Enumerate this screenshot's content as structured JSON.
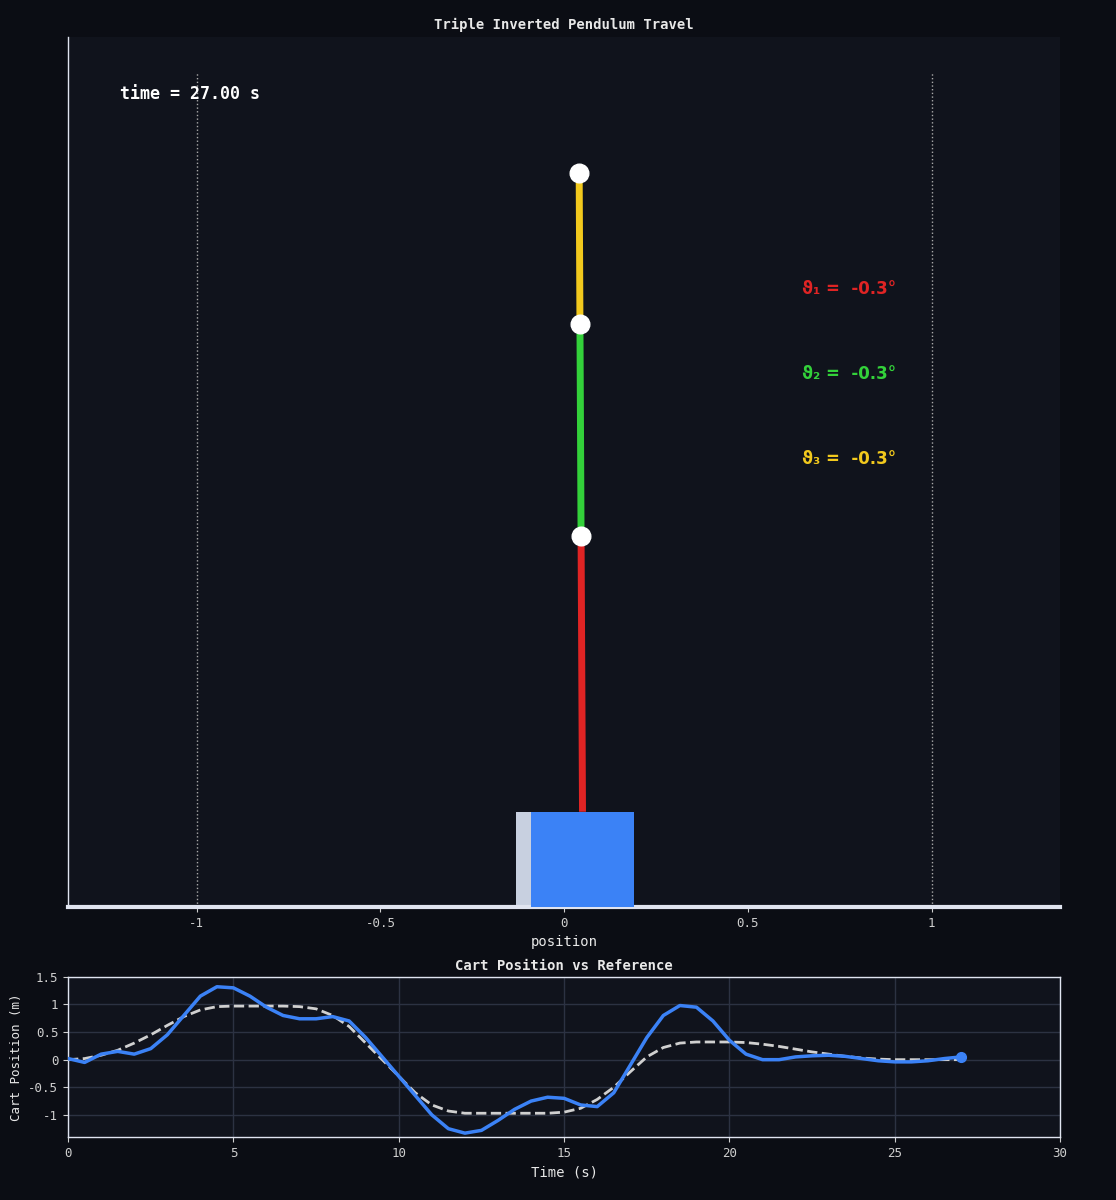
{
  "chart_data": [
    {
      "type": "pendulum",
      "title": "Triple Inverted Pendulum Travel",
      "x_label": "position",
      "xlim": [
        -1.35,
        1.35
      ],
      "xticks": [
        -1,
        -0.5,
        0,
        0.5,
        1
      ],
      "ylim": [
        0,
        2.37
      ],
      "tick_labels": "x",
      "annotations": [
        "time = 27.00 s"
      ],
      "track_limits": [
        -1,
        1
      ],
      "cart_position": 0.05,
      "color": "#3b82f6",
      "links": [
        {
          "label": "ϑ₁ =  -0.3°",
          "angle": -0.3,
          "color": "#e02424"
        },
        {
          "label": "ϑ₂ =  -0.3°",
          "angle": -0.3,
          "color": "#33d13a"
        },
        {
          "label": "ϑ₃ =  -0.3°",
          "angle": -0.3,
          "color": "#f2c91d"
        }
      ]
    },
    {
      "type": "line",
      "title": "Cart Position vs Reference",
      "x_label": "Time (s)",
      "y_label": "Cart Position (m)",
      "xlim": [
        0,
        30
      ],
      "xticks": [
        0,
        5,
        10,
        15,
        20,
        25,
        30
      ],
      "ylim": [
        -1.4,
        1.5
      ],
      "yticks": [
        -1,
        -0.5,
        0,
        0.5,
        1,
        1.5
      ],
      "grid": true,
      "x": [
        0,
        0.5,
        1,
        1.5,
        2,
        2.5,
        3,
        3.5,
        4,
        4.5,
        5,
        5.5,
        6,
        6.5,
        7,
        7.5,
        8,
        8.5,
        9,
        9.5,
        10,
        10.5,
        11,
        11.5,
        12,
        12.5,
        13,
        13.5,
        14,
        14.5,
        15,
        15.5,
        16,
        16.5,
        17,
        17.5,
        18,
        18.5,
        19,
        19.5,
        20,
        20.5,
        21,
        21.5,
        22,
        22.5,
        23,
        23.5,
        24,
        24.5,
        25,
        25.5,
        26,
        26.5,
        27
      ],
      "series": [
        {
          "color": "#d0d0d0",
          "line_style": "dashed",
          "values": [
            0,
            0.02,
            0.08,
            0.17,
            0.3,
            0.45,
            0.62,
            0.78,
            0.9,
            0.96,
            0.97,
            0.97,
            0.97,
            0.97,
            0.96,
            0.92,
            0.8,
            0.6,
            0.3,
            0.0,
            -0.3,
            -0.6,
            -0.82,
            -0.93,
            -0.97,
            -0.97,
            -0.97,
            -0.97,
            -0.97,
            -0.97,
            -0.95,
            -0.88,
            -0.72,
            -0.5,
            -0.22,
            0.05,
            0.22,
            0.3,
            0.32,
            0.32,
            0.32,
            0.31,
            0.28,
            0.24,
            0.19,
            0.14,
            0.1,
            0.06,
            0.03,
            0.01,
            0,
            0,
            0,
            0,
            0
          ]
        },
        {
          "color": "#3b82f6",
          "line_style": "solid",
          "marker": "o",
          "values": [
            0.02,
            -0.05,
            0.1,
            0.15,
            0.1,
            0.2,
            0.45,
            0.8,
            1.15,
            1.32,
            1.3,
            1.15,
            0.95,
            0.8,
            0.74,
            0.74,
            0.78,
            0.7,
            0.4,
            0.05,
            -0.3,
            -0.65,
            -1.0,
            -1.25,
            -1.33,
            -1.28,
            -1.1,
            -0.9,
            -0.75,
            -0.68,
            -0.7,
            -0.82,
            -0.85,
            -0.6,
            -0.1,
            0.4,
            0.8,
            0.98,
            0.95,
            0.7,
            0.35,
            0.1,
            0.0,
            0.0,
            0.05,
            0.07,
            0.08,
            0.06,
            0.02,
            -0.02,
            -0.04,
            -0.04,
            -0.02,
            0.02,
            0.05
          ]
        }
      ]
    }
  ]
}
